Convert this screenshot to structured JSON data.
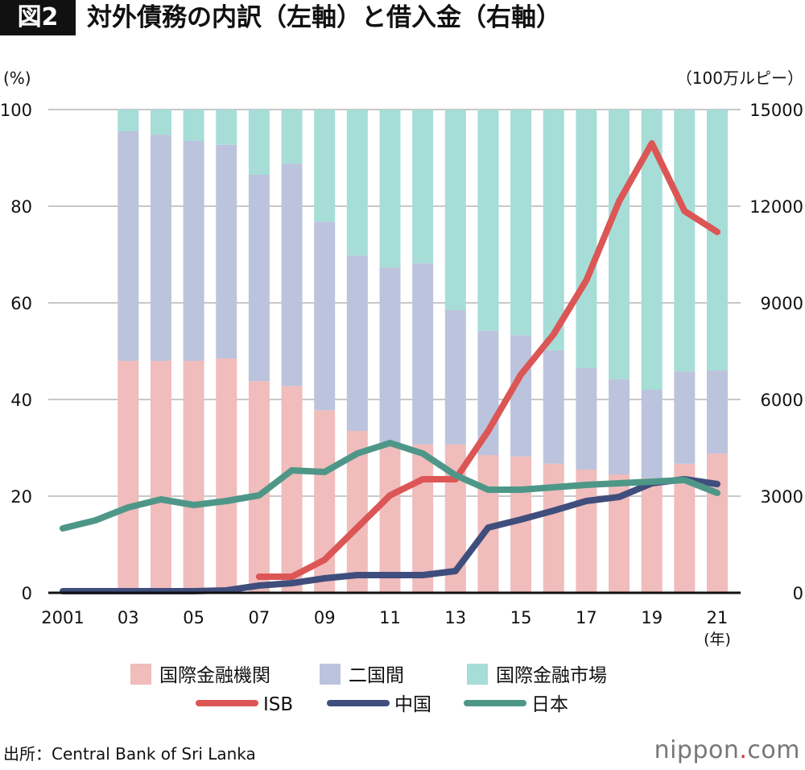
{
  "header": {
    "figure_label": "図2",
    "title": "対外債務の内訳（左軸）と借入金（右軸）"
  },
  "source": "出所：Central Bank of Sri Lanka",
  "logo": {
    "pre": "nippon",
    "dot": ".",
    "post": "com"
  },
  "colors": {
    "multilateral": "#f0bcbc",
    "bilateral": "#bcc3dc",
    "market": "#a6ddd7",
    "isb": "#dc5656",
    "china": "#3f4e7c",
    "japan": "#4e9788"
  },
  "chart_data": {
    "type": "bar+line",
    "title": "対外債務の内訳（左軸）と借入金（右軸）",
    "ylabel_left": "(%)",
    "ylabel_right": "（100万ルピー）",
    "xlabel_unit": "(年)",
    "ylim_left": [
      0,
      100
    ],
    "ylim_right": [
      0,
      15000
    ],
    "yticks_left": [
      "0",
      "20",
      "40",
      "60",
      "80",
      "100"
    ],
    "yticks_right": [
      "0",
      "3000",
      "6000",
      "9000",
      "12000",
      "15000"
    ],
    "xtick_labels": [
      {
        "year": 2001,
        "label": "2001"
      },
      {
        "year": 2003,
        "label": "03"
      },
      {
        "year": 2005,
        "label": "05"
      },
      {
        "year": 2007,
        "label": "07"
      },
      {
        "year": 2009,
        "label": "09"
      },
      {
        "year": 2011,
        "label": "11"
      },
      {
        "year": 2013,
        "label": "13"
      },
      {
        "year": 2015,
        "label": "15"
      },
      {
        "year": 2017,
        "label": "17"
      },
      {
        "year": 2019,
        "label": "19"
      },
      {
        "year": 2021,
        "label": "21"
      }
    ],
    "grid": true,
    "legend_position": "bottom",
    "bar_years": [
      2003,
      2004,
      2005,
      2006,
      2007,
      2008,
      2009,
      2010,
      2011,
      2012,
      2013,
      2014,
      2015,
      2016,
      2017,
      2018,
      2019,
      2020,
      2021
    ],
    "bar_series": [
      {
        "name": "国際金融機関",
        "key": "multilateral",
        "values": [
          48.0,
          48.0,
          48.0,
          48.5,
          43.8,
          42.8,
          37.8,
          33.5,
          31.0,
          30.7,
          30.7,
          28.5,
          28.2,
          26.7,
          25.5,
          24.5,
          23.7,
          26.7,
          28.8
        ]
      },
      {
        "name": "二国間",
        "key": "bilateral",
        "values": [
          47.5,
          46.8,
          45.5,
          44.2,
          42.7,
          46.0,
          39.0,
          36.3,
          36.3,
          37.5,
          27.8,
          25.7,
          25.1,
          23.5,
          21.0,
          19.7,
          18.3,
          19.1,
          17.2
        ]
      },
      {
        "name": "国際金融市場",
        "key": "market",
        "values": [
          4.5,
          5.2,
          6.5,
          7.3,
          13.5,
          11.2,
          23.2,
          30.2,
          32.7,
          31.8,
          41.5,
          45.8,
          46.7,
          49.8,
          53.5,
          55.8,
          58.0,
          54.2,
          54.0
        ]
      }
    ],
    "line_series": [
      {
        "name": "ISB",
        "key": "isb",
        "years": [
          2007,
          2008,
          2009,
          2010,
          2011,
          2012,
          2013,
          2014,
          2015,
          2016,
          2017,
          2018,
          2019,
          2020,
          2021
        ],
        "values": [
          500,
          500,
          1025,
          2025,
          3025,
          3525,
          3525,
          5025,
          6775,
          8025,
          9700,
          12150,
          13950,
          11850,
          11200
        ]
      },
      {
        "name": "中国",
        "key": "china",
        "years": [
          2001,
          2002,
          2003,
          2004,
          2005,
          2006,
          2007,
          2008,
          2009,
          2010,
          2011,
          2012,
          2013,
          2014,
          2015,
          2016,
          2017,
          2018,
          2019,
          2020,
          2021
        ],
        "values": [
          50,
          50,
          50,
          50,
          50,
          75,
          225,
          300,
          450,
          550,
          550,
          550,
          675,
          2025,
          2275,
          2550,
          2850,
          2975,
          3400,
          3525,
          3375
        ]
      },
      {
        "name": "日本",
        "key": "japan",
        "years": [
          2001,
          2002,
          2003,
          2004,
          2005,
          2006,
          2007,
          2008,
          2009,
          2010,
          2011,
          2012,
          2013,
          2014,
          2015,
          2016,
          2017,
          2018,
          2019,
          2020,
          2021
        ],
        "values": [
          2000,
          2250,
          2650,
          2900,
          2725,
          2850,
          3025,
          3800,
          3750,
          4325,
          4650,
          4325,
          3650,
          3200,
          3200,
          3275,
          3350,
          3400,
          3450,
          3500,
          3100
        ]
      }
    ]
  }
}
